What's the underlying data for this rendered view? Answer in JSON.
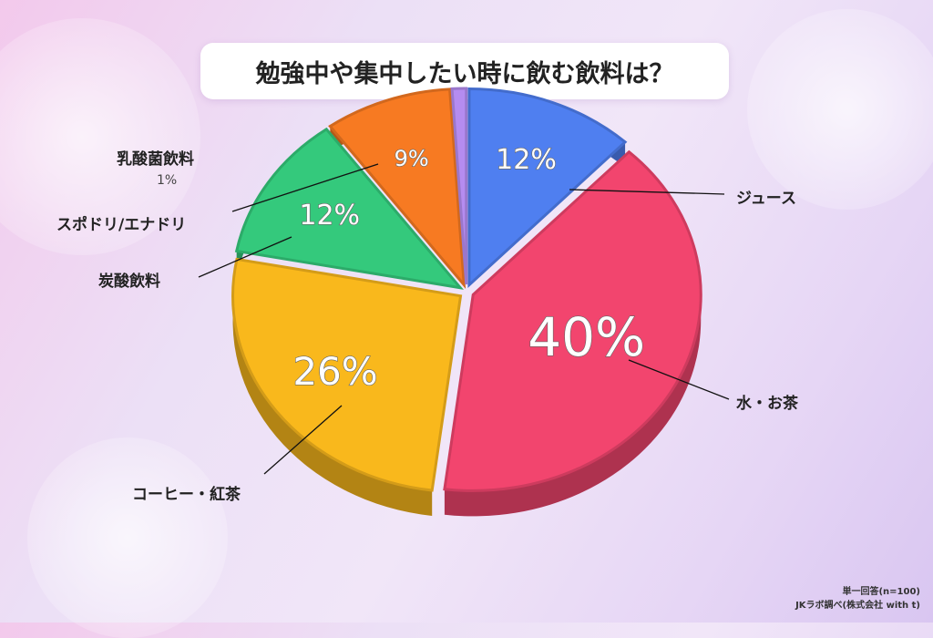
{
  "chart_data": {
    "type": "pie",
    "title": "勉強中や集中したい時に飲む飲料は？",
    "slices": [
      {
        "label": "ジュース",
        "value": 12,
        "display": "12%",
        "color": "#4f7ff0"
      },
      {
        "label": "水・お茶",
        "value": 40,
        "display": "40%",
        "color": "#f2456e"
      },
      {
        "label": "コーヒー・紅茶",
        "value": 26,
        "display": "26%",
        "color": "#f9b81c"
      },
      {
        "label": "炭酸飲料",
        "value": 12,
        "display": "12%",
        "color": "#34c97c"
      },
      {
        "label": "スポドリ/エナドリ",
        "value": 9,
        "display": "9%",
        "color": "#f77a22"
      },
      {
        "label": "乳酸菌飲料",
        "value": 1,
        "display": "1%",
        "color": "#b58cf0"
      }
    ]
  },
  "footnote": {
    "line1": "単一回答(n=100)",
    "line2": "JKラボ調べ(株式会社 with t)"
  }
}
